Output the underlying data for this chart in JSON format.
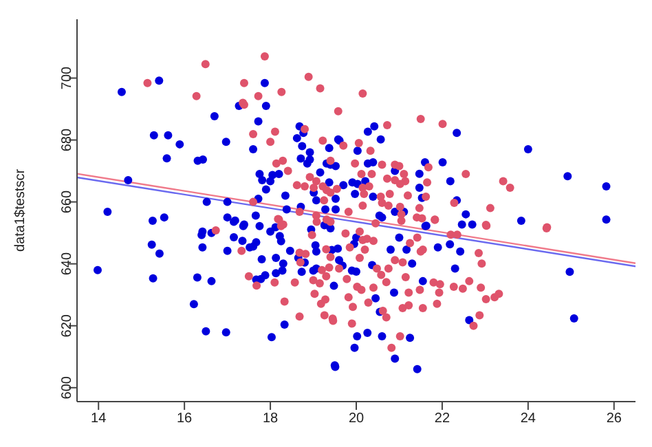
{
  "chart_data": {
    "type": "scatter",
    "ylabel": "data1$testscr",
    "xlim": [
      13.5,
      26.5
    ],
    "ylim": [
      595.5,
      719
    ],
    "xticks": [
      14,
      16,
      18,
      20,
      22,
      24,
      26
    ],
    "yticks": [
      600,
      620,
      640,
      660,
      680,
      700
    ],
    "grid": false,
    "legend": false,
    "series": [
      {
        "color": "#0000dd",
        "marker": "circle",
        "x": [
          14.54,
          15.41,
          15.29,
          15.62,
          15.89,
          15.59,
          16.31,
          16.43,
          16.7,
          16.97,
          17.27,
          17.87,
          17.9,
          17.72,
          17.6,
          14.69,
          14.21,
          15.26,
          15.53,
          16.52,
          17.0,
          17.0,
          17.18,
          17.39,
          17.66,
          17.72,
          17.81,
          17.75,
          17.9,
          18.0,
          18.05,
          18.2,
          18.35,
          18.38,
          18.62,
          18.68,
          18.77,
          18.74,
          18.92,
          18.71,
          18.86,
          18.92,
          19.16,
          19.31,
          19.4,
          19.52,
          19.37,
          19.01,
          19.07,
          19.28,
          19.52,
          18.71,
          19.58,
          19.37,
          19.52,
          20.42,
          20.27,
          20.57,
          19.61,
          20.03,
          22.34,
          24.0,
          24.92,
          25.82,
          25.82,
          23.84,
          21.6,
          22.01,
          22.19,
          22.34,
          21.47,
          21.47,
          21.53,
          20.27,
          20.39,
          20.9,
          19.7,
          19.91,
          20.03,
          20.21,
          19.97,
          20.39,
          20.54,
          20.6,
          20.9,
          21.11,
          22.55,
          22.46,
          22.7,
          21.63,
          13.98,
          15.27,
          15.24,
          15.42,
          16.3,
          16.63,
          16.22,
          16.5,
          16.97,
          18.03,
          18.33,
          19.51,
          16.42,
          16.4,
          16.63,
          16.42,
          17.0,
          17.15,
          17.37,
          17.35,
          17.52,
          17.6,
          17.67,
          17.8,
          17.67,
          17.78,
          17.88,
          17.75,
          18.0,
          18.12,
          18.22,
          18.25,
          18.13,
          18.13,
          18.28,
          18.3,
          18.46,
          18.65,
          18.73,
          18.8,
          18.95,
          19.05,
          19.07,
          19.0,
          19.07,
          19.43,
          19.48,
          19.57,
          19.26,
          17.15,
          24.97,
          25.07,
          22.63,
          22.3,
          22.18,
          21.9,
          22.42,
          21.61,
          21.55,
          20.88,
          20.55,
          20.6,
          20.26,
          20.02,
          19.96,
          19.5,
          20.9,
          21.25,
          21.42,
          20.45,
          20.37,
          20.8,
          21.17,
          21.0,
          20.0,
          19.9,
          20.0,
          19.6,
          19.68,
          19.95,
          21.3,
          19.4
        ],
        "values": [
          695.5,
          699.2,
          681.5,
          681.5,
          678.6,
          674.1,
          673.3,
          673.7,
          687.7,
          679.4,
          691,
          698.4,
          691,
          686,
          677,
          667,
          656.8,
          653.9,
          655,
          660,
          660,
          655,
          654,
          652.7,
          655.6,
          661,
          667,
          669,
          664,
          666.7,
          668.7,
          669,
          662,
          657.6,
          680.6,
          684.4,
          682.3,
          678,
          676,
          674,
          672.4,
          673.7,
          669.5,
          672.4,
          672,
          671.6,
          666.3,
          663,
          660.5,
          657.6,
          657.6,
          658.4,
          680.2,
          677.4,
          661,
          684.4,
          682.7,
          680.2,
          679.8,
          676.5,
          682.3,
          677,
          668.3,
          665,
          654.3,
          653.9,
          672.8,
          672.8,
          666.7,
          660.5,
          669.1,
          664.6,
          661.3,
          672.4,
          672.8,
          670,
          665.4,
          666.3,
          665.8,
          666.7,
          662.6,
          661.7,
          655.6,
          655,
          656.8,
          656.8,
          656,
          652.7,
          652.7,
          652.3,
          638,
          635.3,
          646.2,
          643.3,
          635.6,
          634.4,
          627,
          618.2,
          617.9,
          616.3,
          620.4,
          606.7,
          650.4,
          649.3,
          650,
          645.3,
          644.2,
          648.6,
          652.2,
          647.4,
          645.3,
          645.6,
          647,
          641.5,
          634.9,
          635.1,
          636.3,
          652.2,
          650.4,
          651.8,
          649,
          647.3,
          641.9,
          637,
          637.8,
          640.1,
          644.2,
          641.9,
          637.4,
          640.4,
          651.1,
          646,
          644,
          637.8,
          638.5,
          644.5,
          632.9,
          644.9,
          652.5,
          653.6,
          637.4,
          622.4,
          621.8,
          638.5,
          646.3,
          645.3,
          644,
          652.2,
          634.4,
          630.7,
          624.5,
          616.6,
          617.7,
          616.6,
          612.9,
          607.2,
          609.4,
          616.1,
          606,
          628.9,
          639.6,
          644.6,
          644.6,
          648.5,
          648.5,
          637.8,
          637.5,
          641.2,
          639.4,
          646.4,
          640.1,
          651.5
        ]
      },
      {
        "color": "#df536b",
        "marker": "circle",
        "x": [
          15.14,
          16.49,
          16.28,
          17.87,
          17.39,
          17.36,
          17.39,
          17.72,
          18.26,
          18.89,
          19.16,
          19.58,
          17.6,
          18.11,
          18.0,
          18.14,
          18.29,
          18.41,
          18.8,
          19.22,
          19.4,
          18.92,
          18.62,
          19.07,
          18.8,
          19.01,
          19.22,
          19.31,
          19.4,
          19.55,
          19.25,
          17.6,
          18.2,
          18.68,
          19.07,
          19.31,
          20.15,
          20.72,
          21.5,
          22.01,
          20.06,
          19.7,
          20.33,
          20.6,
          20.9,
          21.0,
          21.68,
          22.55,
          23.42,
          23.58,
          23.12,
          24.44,
          19.97,
          20.12,
          20.36,
          20.72,
          20.9,
          21.11,
          21.14,
          21.02,
          21.65,
          20.3,
          20.15,
          20.18,
          20.57,
          20.78,
          21.2,
          21.62,
          20.6,
          20.75,
          21.02,
          21.47,
          22.28,
          20.15,
          19.82,
          21.05,
          21.41,
          21.53,
          21.83,
          21.05,
          20.45,
          23.03,
          16.73,
          17.33,
          17.5,
          17.68,
          18.1,
          18.18,
          18.25,
          18.3,
          18.33,
          18.57,
          18.68,
          18.7,
          18.82,
          18.97,
          19.0,
          19.03,
          19.15,
          19.18,
          19.26,
          19.28,
          19.3,
          19.4,
          19.37,
          19.3,
          19.4,
          19.08,
          19.46,
          18.68,
          19.2,
          19.75,
          20.08,
          20.15,
          20.25,
          19.85,
          20.2,
          20.08,
          19.6,
          19.78,
          20.02,
          20.12,
          19.82,
          19.92,
          19.45,
          19.9,
          20.28,
          20.4,
          20.58,
          20.7,
          20.62,
          20.7,
          20.48,
          20.75,
          20.9,
          21.08,
          21.15,
          21.22,
          21.08,
          21.22,
          21.02,
          20.82,
          21.48,
          21.55,
          21.8,
          21.95,
          21.88,
          21.93,
          22.27,
          22.63,
          22.48,
          22.85,
          22.92,
          22.9,
          23.02,
          22.87,
          22.73,
          23.22,
          23.32,
          21.5,
          21.42,
          21.25,
          22.2,
          22.35,
          21.83,
          23.02,
          24.43,
          20.4,
          21.55
        ],
        "values": [
          698.4,
          704.5,
          694.2,
          707,
          698.4,
          692,
          691.4,
          694.2,
          695.5,
          700.4,
          696.7,
          689.3,
          681.9,
          682.7,
          679.4,
          672.4,
          673.3,
          670,
          683.5,
          679.8,
          673.3,
          668,
          665.4,
          666.7,
          665,
          664.6,
          665,
          663.8,
          663,
          664.2,
          660.5,
          660,
          654.3,
          656.8,
          655.6,
          654.3,
          695,
          684.8,
          686.8,
          685.2,
          679,
          678.2,
          676.5,
          672,
          672,
          671.6,
          671.2,
          669,
          666.7,
          664.6,
          658,
          651.8,
          672.4,
          669,
          669,
          667.5,
          667,
          669,
          666.7,
          665.8,
          666.3,
          665,
          664.6,
          662.6,
          661.7,
          662.6,
          662.1,
          661.7,
          659.7,
          658.8,
          658.4,
          658,
          659.7,
          658.8,
          656.8,
          656,
          655,
          654.7,
          654.3,
          653.9,
          653.1,
          652.3,
          650.8,
          644.2,
          636,
          633,
          634,
          654.5,
          652.2,
          652.7,
          627.8,
          634,
          643.6,
          640.5,
          643.2,
          649.3,
          634.7,
          630.3,
          633.7,
          627.1,
          623.4,
          628.5,
          644.7,
          642.2,
          638.8,
          636,
          653.6,
          653.6,
          621.6,
          623,
          638,
          649.8,
          650.4,
          647.7,
          648.1,
          645.3,
          644.6,
          641.9,
          638.5,
          635.1,
          632.6,
          631.6,
          629.2,
          626.1,
          622.3,
          620.7,
          627.5,
          632.3,
          636.4,
          634.1,
          624.8,
          622.7,
          638.5,
          638.5,
          641.2,
          640.5,
          635.7,
          630.7,
          625.7,
          626.6,
          616.6,
          612.9,
          631.6,
          625.7,
          634,
          633.4,
          627.1,
          630.7,
          632.6,
          634.4,
          632,
          643.5,
          640.1,
          632.3,
          628.6,
          623.4,
          620,
          629.2,
          630.3,
          644,
          648.5,
          646.7,
          649.4,
          649.4,
          654.2,
          652.6,
          651.5,
          647.4,
          644.6
        ]
      },
      {
        "type": "line",
        "color": "#f07a8a",
        "x": [
          13.5,
          26.5
        ],
        "values": [
          669.1,
          640.2
        ]
      },
      {
        "type": "line",
        "color": "#6a6af0",
        "x": [
          13.5,
          26.5
        ],
        "values": [
          667.9,
          639.2
        ]
      }
    ]
  }
}
